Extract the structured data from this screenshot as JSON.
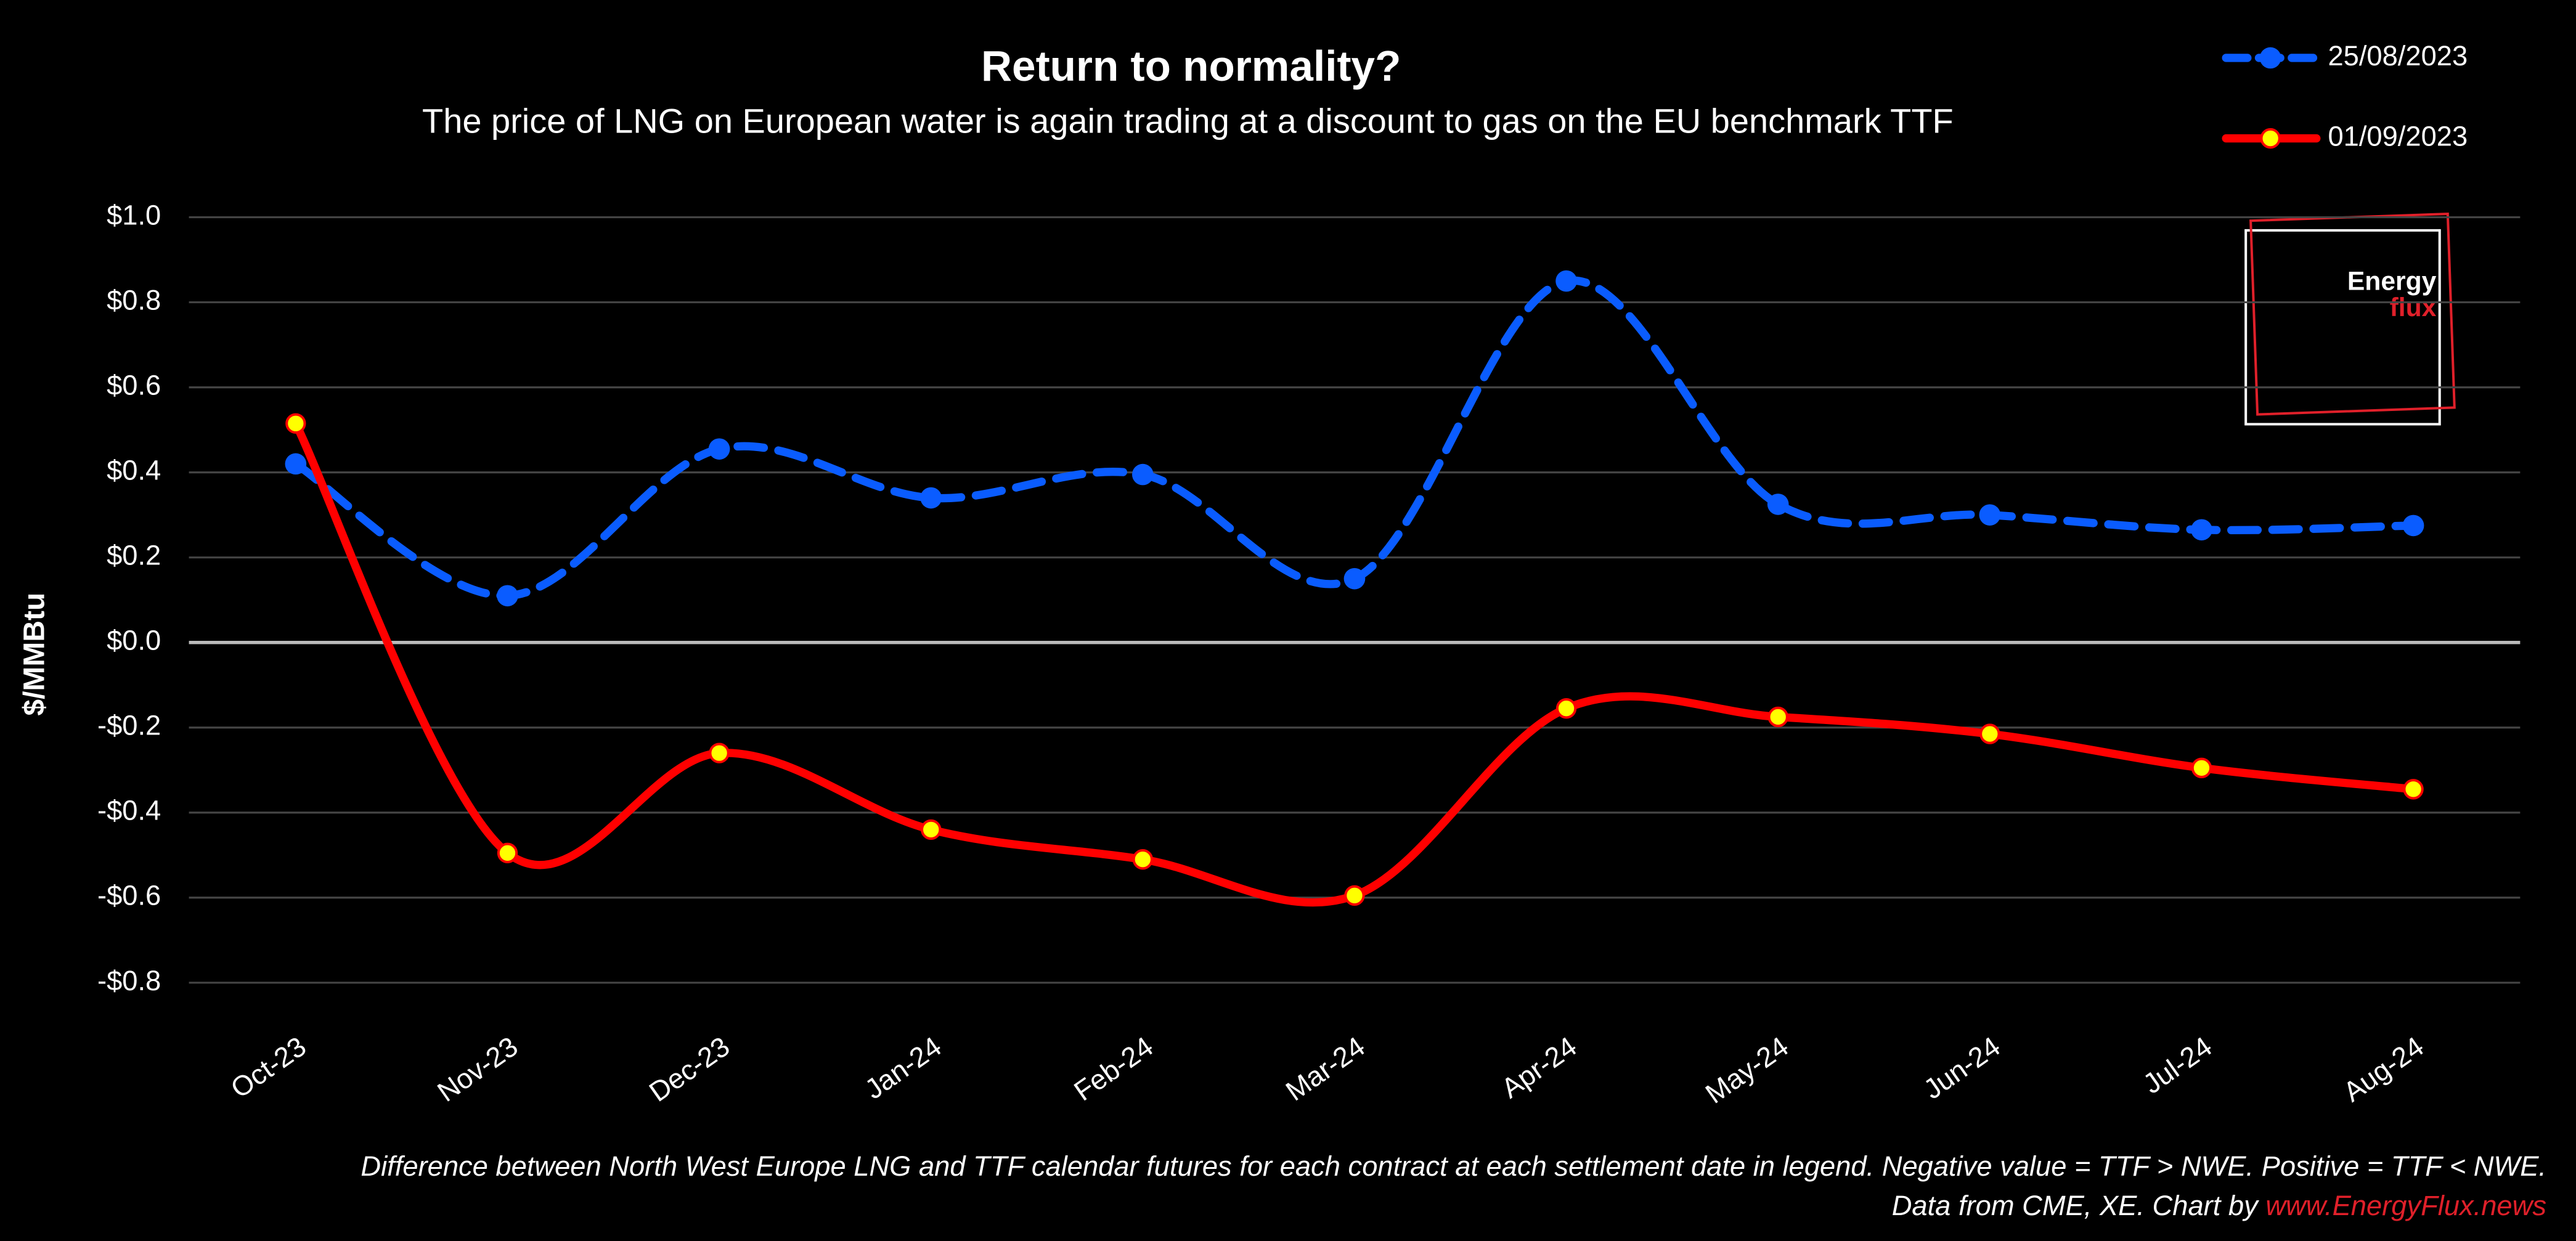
{
  "chart_data": {
    "type": "line",
    "title": "Return to normality?",
    "subtitle": "The price of LNG on European water is again trading at a discount to gas on the EU benchmark TTF",
    "y_label": "$/MMBtu",
    "categories": [
      "Oct-23",
      "Nov-23",
      "Dec-23",
      "Jan-24",
      "Feb-24",
      "Mar-24",
      "Apr-24",
      "May-24",
      "Jun-24",
      "Jul-24",
      "Aug-24"
    ],
    "series": [
      {
        "name": "25/08/2023",
        "color": "#0a5cff",
        "values": [
          0.42,
          0.11,
          0.455,
          0.34,
          0.395,
          0.15,
          0.85,
          0.325,
          0.3,
          0.265,
          0.275
        ]
      },
      {
        "name": "01/09/2023",
        "color": "#ff0000",
        "values": [
          0.515,
          -0.495,
          -0.26,
          -0.44,
          -0.51,
          -0.595,
          -0.155,
          -0.175,
          -0.215,
          -0.295,
          -0.345
        ]
      }
    ],
    "ylim": [
      -0.8,
      1.0
    ],
    "yticks": [
      {
        "value": -0.8,
        "label": "-$0.8"
      },
      {
        "value": -0.6,
        "label": "-$0.6"
      },
      {
        "value": -0.4,
        "label": "-$0.4"
      },
      {
        "value": -0.2,
        "label": "-$0.2"
      },
      {
        "value": 0,
        "label": "$0.0"
      },
      {
        "value": 0.2,
        "label": "$0.2"
      },
      {
        "value": 0.4,
        "label": "$0.4"
      },
      {
        "value": 0.6,
        "label": "$0.6"
      },
      {
        "value": 0.8,
        "label": "$0.8"
      },
      {
        "value": 1.0,
        "label": "$1.0"
      }
    ],
    "grid": true,
    "legend": "top-right",
    "logo": {
      "line1": "Energy",
      "line2": "flux"
    },
    "note": "Difference between North West Europe LNG and TTF calendar futures for  each contract at each settlement date in legend. Negative value = TTF > NWE. Positive = TTF < NWE.",
    "source": "Data from CME, XE. Chart by ",
    "source_link": "www.EnergyFlux.news"
  }
}
